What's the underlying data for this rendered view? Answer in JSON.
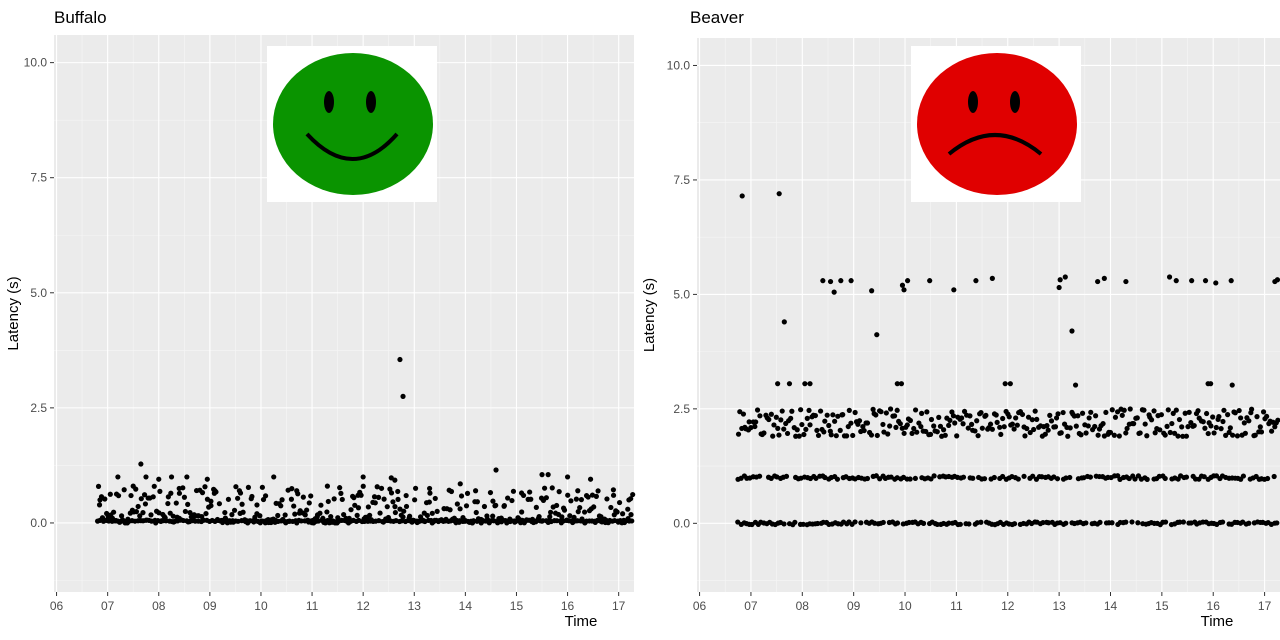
{
  "chart_data": [
    {
      "type": "scatter",
      "title": "Buffalo",
      "xlabel": "Time",
      "ylabel": "Latency (s)",
      "x_ticks": [
        "06",
        "07",
        "08",
        "09",
        "10",
        "11",
        "12",
        "13",
        "14",
        "15",
        "16",
        "17"
      ],
      "y_ticks": [
        "0.0",
        "2.5",
        "5.0",
        "7.5",
        "10.0"
      ],
      "xlim": [
        5.95,
        17.3
      ],
      "ylim": [
        -1.5,
        10.6
      ],
      "grid": true,
      "point_color": "#000000",
      "panel_background": "#ebebeb",
      "icon": "smiley-face-icon",
      "icon_color": "#0a9400",
      "series": [
        {
          "x": [
            6.85,
            7.2,
            7.65,
            7.75,
            8.0,
            8.25,
            8.55,
            8.95,
            10.25,
            12.0,
            12.55,
            12.62,
            12.72,
            12.78,
            14.6,
            15.5,
            15.62,
            16.0,
            16.45,
            7.5,
            8.4,
            9.1,
            9.6,
            10.7,
            11.3,
            11.9,
            13.3,
            13.9,
            14.2,
            15.1,
            16.2,
            16.9,
            17.2
          ],
          "y": [
            0.5,
            1.0,
            1.28,
            1.0,
            0.95,
            1.0,
            1.0,
            0.95,
            1.0,
            1.0,
            0.98,
            0.93,
            3.55,
            2.75,
            1.15,
            1.05,
            1.05,
            1.0,
            0.95,
            0.8,
            0.75,
            0.7,
            0.65,
            0.7,
            0.8,
            0.6,
            0.75,
            0.85,
            0.7,
            0.65,
            0.7,
            0.6,
            0.5
          ]
        }
      ],
      "band": {
        "x_start": 6.8,
        "x_end": 17.3,
        "count": 560,
        "y_min": 0.0,
        "y_max": 0.8,
        "baseline": 0.03
      }
    },
    {
      "type": "scatter",
      "title": "Beaver",
      "xlabel": "Time",
      "ylabel": "Latency (s)",
      "x_ticks": [
        "06",
        "07",
        "08",
        "09",
        "10",
        "11",
        "12",
        "13",
        "14",
        "15",
        "16",
        "17"
      ],
      "y_ticks": [
        "0.0",
        "2.5",
        "5.0",
        "7.5",
        "10.0"
      ],
      "xlim": [
        5.95,
        17.3
      ],
      "ylim": [
        -1.5,
        10.6
      ],
      "grid": true,
      "point_color": "#000000",
      "panel_background": "#ebebeb",
      "icon": "sad-face-icon",
      "icon_color": "#e00000",
      "series": [
        {
          "x": [
            6.83,
            7.55,
            7.65,
            7.52,
            7.75,
            8.05,
            8.15,
            8.4,
            8.55,
            8.62,
            8.75,
            8.95,
            9.35,
            9.45,
            9.85,
            9.95,
            9.98,
            10.05,
            9.93,
            10.48,
            10.95,
            11.38,
            11.7,
            11.95,
            12.05,
            13.0,
            13.02,
            13.12,
            13.25,
            13.32,
            13.75,
            13.88,
            14.3,
            15.15,
            15.28,
            15.58,
            15.85,
            15.9,
            15.95,
            16.05,
            16.35,
            16.37,
            17.2,
            17.25
          ],
          "y": [
            7.15,
            7.2,
            4.4,
            3.05,
            3.05,
            3.05,
            3.05,
            5.3,
            5.28,
            5.05,
            5.3,
            5.3,
            5.08,
            4.12,
            3.05,
            5.2,
            5.1,
            5.3,
            3.05,
            5.3,
            5.1,
            5.3,
            5.35,
            3.05,
            3.05,
            5.15,
            5.32,
            5.38,
            4.2,
            3.02,
            5.28,
            5.35,
            5.28,
            5.38,
            5.3,
            5.3,
            5.3,
            3.05,
            3.05,
            5.25,
            5.3,
            3.02,
            5.28,
            5.32
          ]
        }
      ],
      "levels": [
        {
          "y_center": 2.2,
          "spread": 0.3,
          "count": 330
        },
        {
          "y_center": 1.0,
          "spread": 0.04,
          "count": 180
        },
        {
          "y_center": 0.0,
          "spread": 0.03,
          "count": 190
        }
      ]
    }
  ]
}
